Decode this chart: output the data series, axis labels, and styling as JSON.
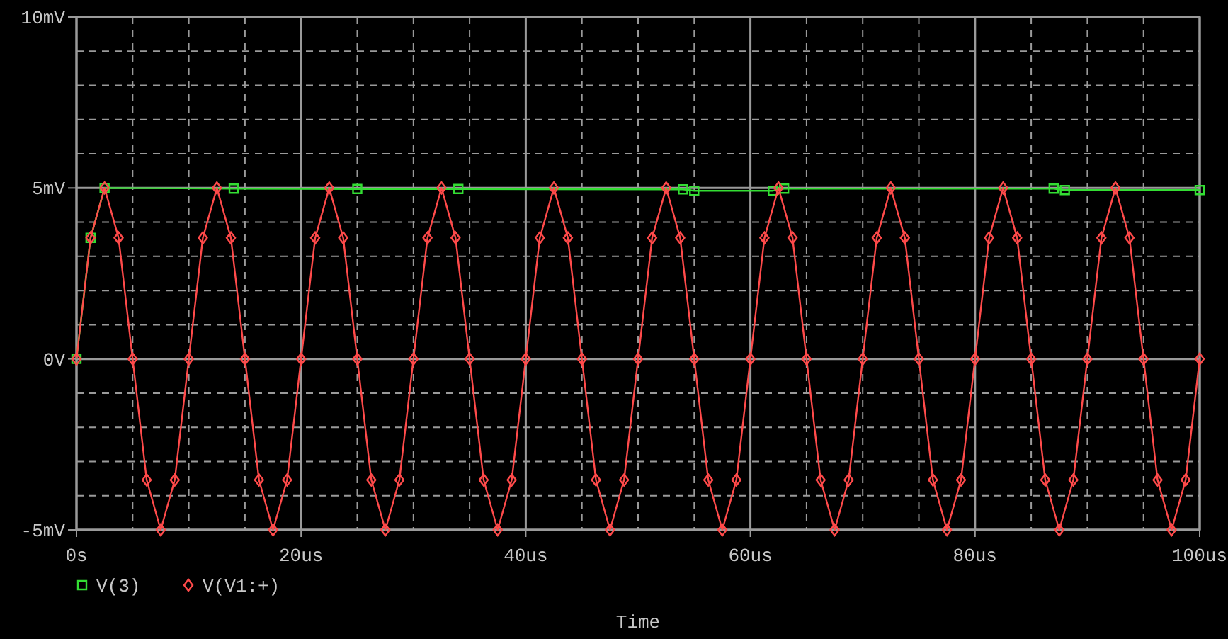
{
  "chart_data": {
    "type": "line",
    "xlabel": "Time",
    "x": [
      0,
      1.25,
      2.5,
      3.75,
      5,
      6.25,
      7.5,
      8.75,
      10,
      11.25,
      12.5,
      13.75,
      15,
      16.25,
      17.5,
      18.75,
      20,
      21.25,
      22.5,
      23.75,
      25,
      26.25,
      27.5,
      28.75,
      30,
      31.25,
      32.5,
      33.75,
      35,
      36.25,
      37.5,
      38.75,
      40,
      41.25,
      42.5,
      43.75,
      45,
      46.25,
      47.5,
      48.75,
      50,
      51.25,
      52.5,
      53.75,
      55,
      56.25,
      57.5,
      58.75,
      60,
      61.25,
      62.5,
      63.75,
      65,
      66.25,
      67.5,
      68.75,
      70,
      71.25,
      72.5,
      73.75,
      75,
      76.25,
      77.5,
      78.75,
      80,
      81.25,
      82.5,
      83.75,
      85,
      86.25,
      87.5,
      88.75,
      90,
      91.25,
      92.5,
      93.75,
      95,
      96.25,
      97.5,
      98.75,
      100
    ],
    "series": [
      {
        "name": "V(3)",
        "color": "#33dd33",
        "marker": "square",
        "x": [
          0,
          1.25,
          2.5,
          14,
          25,
          34,
          54,
          55,
          62,
          63,
          87,
          88,
          100
        ],
        "values": [
          0,
          3.54,
          5,
          4.98,
          4.97,
          4.97,
          4.96,
          4.92,
          4.92,
          4.98,
          4.98,
          4.94,
          4.94
        ]
      },
      {
        "name": "V(V1:+)",
        "color": "#ff4a4a",
        "marker": "diamond",
        "values": [
          0,
          3.54,
          5,
          3.54,
          0,
          -3.54,
          -5,
          -3.54,
          0,
          3.54,
          5,
          3.54,
          0,
          -3.54,
          -5,
          -3.54,
          0,
          3.54,
          5,
          3.54,
          0,
          -3.54,
          -5,
          -3.54,
          0,
          3.54,
          5,
          3.54,
          0,
          -3.54,
          -5,
          -3.54,
          0,
          3.54,
          5,
          3.54,
          0,
          -3.54,
          -5,
          -3.54,
          0,
          3.54,
          5,
          3.54,
          0,
          -3.54,
          -5,
          -3.54,
          0,
          3.54,
          5,
          3.54,
          0,
          -3.54,
          -5,
          -3.54,
          0,
          3.54,
          5,
          3.54,
          0,
          -3.54,
          -5,
          -3.54,
          0,
          3.54,
          5,
          3.54,
          0,
          -3.54,
          -5,
          -3.54,
          0,
          3.54,
          5,
          3.54,
          0,
          -3.54,
          -5,
          -3.54,
          0
        ]
      }
    ],
    "xlim": [
      0,
      100
    ],
    "xticks": [
      {
        "value": 0,
        "label": "0s"
      },
      {
        "value": 5,
        "label": null
      },
      {
        "value": 10,
        "label": null
      },
      {
        "value": 15,
        "label": null
      },
      {
        "value": 20,
        "label": "20us"
      },
      {
        "value": 25,
        "label": null
      },
      {
        "value": 30,
        "label": null
      },
      {
        "value": 35,
        "label": null
      },
      {
        "value": 40,
        "label": "40us"
      },
      {
        "value": 45,
        "label": null
      },
      {
        "value": 50,
        "label": null
      },
      {
        "value": 55,
        "label": null
      },
      {
        "value": 60,
        "label": "60us"
      },
      {
        "value": 65,
        "label": null
      },
      {
        "value": 70,
        "label": null
      },
      {
        "value": 75,
        "label": null
      },
      {
        "value": 80,
        "label": "80us"
      },
      {
        "value": 85,
        "label": null
      },
      {
        "value": 90,
        "label": null
      },
      {
        "value": 95,
        "label": null
      },
      {
        "value": 100,
        "label": "100us"
      }
    ],
    "ylim": [
      -5,
      10
    ],
    "yticks": [
      {
        "value": -5,
        "label": "-5mV"
      },
      {
        "value": -4,
        "label": null
      },
      {
        "value": -3,
        "label": null
      },
      {
        "value": -2,
        "label": null
      },
      {
        "value": -1,
        "label": null
      },
      {
        "value": 0,
        "label": "0V"
      },
      {
        "value": 1,
        "label": null
      },
      {
        "value": 2,
        "label": null
      },
      {
        "value": 3,
        "label": null
      },
      {
        "value": 4,
        "label": null
      },
      {
        "value": 5,
        "label": "5mV"
      },
      {
        "value": 6,
        "label": null
      },
      {
        "value": 7,
        "label": null
      },
      {
        "value": 8,
        "label": null
      },
      {
        "value": 9,
        "label": null
      },
      {
        "value": 10,
        "label": "10mV"
      }
    ],
    "grid": true,
    "legend": "bottom left"
  }
}
